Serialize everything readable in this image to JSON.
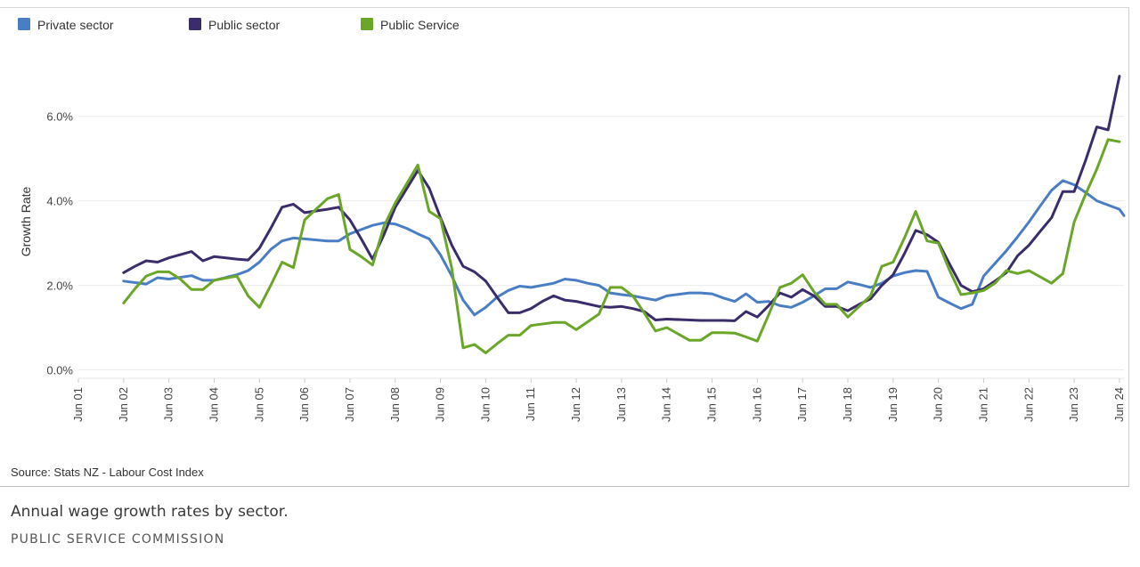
{
  "chart_data": {
    "type": "line",
    "title": "",
    "xlabel": "",
    "ylabel": "Growth Rate",
    "y_ticks": [
      "0.0%",
      "2.0%",
      "4.0%",
      "6.0%"
    ],
    "y_tick_values": [
      0,
      2,
      4,
      6
    ],
    "ylim": [
      -0.2,
      7.3
    ],
    "x_ticks": [
      "Jun 01",
      "Jun 02",
      "Jun 03",
      "Jun 04",
      "Jun 05",
      "Jun 06",
      "Jun 07",
      "Jun 08",
      "Jun 09",
      "Jun 10",
      "Jun 11",
      "Jun 12",
      "Jun 13",
      "Jun 14",
      "Jun 15",
      "Jun 16",
      "Jun 17",
      "Jun 18",
      "Jun 19",
      "Jun 20",
      "Jun 21",
      "Jun 22",
      "Jun 23",
      "Jun 24"
    ],
    "x_tick_years": [
      2001,
      2002,
      2003,
      2004,
      2005,
      2006,
      2007,
      2008,
      2009,
      2010,
      2011,
      2012,
      2013,
      2014,
      2015,
      2016,
      2017,
      2018,
      2019,
      2020,
      2021,
      2022,
      2023,
      2024
    ],
    "xlim": [
      2001,
      2024.1
    ],
    "grid": "horizontal",
    "legend_position": "top-left",
    "series": [
      {
        "name": "Private sector",
        "color": "#4a7ec4",
        "points": [
          [
            2002,
            2.1
          ],
          [
            2002.5,
            2.03
          ],
          [
            2002.75,
            2.18
          ],
          [
            2003,
            2.15
          ],
          [
            2003.5,
            2.23
          ],
          [
            2003.75,
            2.12
          ],
          [
            2004,
            2.12
          ],
          [
            2004.5,
            2.25
          ],
          [
            2004.75,
            2.35
          ],
          [
            2005,
            2.55
          ],
          [
            2005.25,
            2.85
          ],
          [
            2005.5,
            3.05
          ],
          [
            2005.75,
            3.12
          ],
          [
            2006,
            3.1
          ],
          [
            2006.5,
            3.05
          ],
          [
            2006.75,
            3.05
          ],
          [
            2007,
            3.22
          ],
          [
            2007.25,
            3.32
          ],
          [
            2007.5,
            3.42
          ],
          [
            2007.75,
            3.48
          ],
          [
            2008,
            3.45
          ],
          [
            2008.25,
            3.35
          ],
          [
            2008.5,
            3.22
          ],
          [
            2008.75,
            3.1
          ],
          [
            2009,
            2.72
          ],
          [
            2009.25,
            2.22
          ],
          [
            2009.5,
            1.65
          ],
          [
            2009.75,
            1.3
          ],
          [
            2010,
            1.48
          ],
          [
            2010.25,
            1.72
          ],
          [
            2010.5,
            1.88
          ],
          [
            2010.75,
            1.98
          ],
          [
            2011,
            1.95
          ],
          [
            2011.5,
            2.05
          ],
          [
            2011.75,
            2.15
          ],
          [
            2012,
            2.12
          ],
          [
            2012.25,
            2.05
          ],
          [
            2012.5,
            2.0
          ],
          [
            2012.75,
            1.82
          ],
          [
            2013,
            1.78
          ],
          [
            2013.25,
            1.75
          ],
          [
            2013.5,
            1.7
          ],
          [
            2013.75,
            1.65
          ],
          [
            2014,
            1.75
          ],
          [
            2014.5,
            1.82
          ],
          [
            2014.75,
            1.82
          ],
          [
            2015,
            1.8
          ],
          [
            2015.25,
            1.7
          ],
          [
            2015.5,
            1.62
          ],
          [
            2015.75,
            1.8
          ],
          [
            2016,
            1.6
          ],
          [
            2016.25,
            1.62
          ],
          [
            2016.5,
            1.52
          ],
          [
            2016.75,
            1.48
          ],
          [
            2017,
            1.6
          ],
          [
            2017.25,
            1.75
          ],
          [
            2017.5,
            1.92
          ],
          [
            2017.75,
            1.92
          ],
          [
            2018,
            2.08
          ],
          [
            2018.25,
            2.02
          ],
          [
            2018.5,
            1.95
          ],
          [
            2018.75,
            2.05
          ],
          [
            2019,
            2.22
          ],
          [
            2019.25,
            2.3
          ],
          [
            2019.5,
            2.35
          ],
          [
            2019.75,
            2.33
          ],
          [
            2020,
            1.72
          ],
          [
            2020.25,
            1.58
          ],
          [
            2020.5,
            1.45
          ],
          [
            2020.75,
            1.55
          ],
          [
            2021,
            2.22
          ],
          [
            2021.25,
            2.52
          ],
          [
            2021.5,
            2.82
          ],
          [
            2021.75,
            3.15
          ],
          [
            2022,
            3.5
          ],
          [
            2022.25,
            3.88
          ],
          [
            2022.5,
            4.25
          ],
          [
            2022.75,
            4.48
          ],
          [
            2023,
            4.38
          ],
          [
            2023.25,
            4.2
          ],
          [
            2023.5,
            4.0
          ],
          [
            2023.75,
            3.9
          ],
          [
            2024,
            3.8
          ],
          [
            2024.1,
            3.65
          ]
        ]
      },
      {
        "name": "Public sector",
        "color": "#3b2d6b",
        "points": [
          [
            2002,
            2.3
          ],
          [
            2002.25,
            2.45
          ],
          [
            2002.5,
            2.58
          ],
          [
            2002.75,
            2.55
          ],
          [
            2003,
            2.65
          ],
          [
            2003.5,
            2.8
          ],
          [
            2003.75,
            2.58
          ],
          [
            2004,
            2.68
          ],
          [
            2004.5,
            2.62
          ],
          [
            2004.75,
            2.6
          ],
          [
            2005,
            2.88
          ],
          [
            2005.25,
            3.35
          ],
          [
            2005.5,
            3.85
          ],
          [
            2005.75,
            3.92
          ],
          [
            2006,
            3.72
          ],
          [
            2006.5,
            3.8
          ],
          [
            2006.75,
            3.85
          ],
          [
            2007,
            3.55
          ],
          [
            2007.25,
            3.1
          ],
          [
            2007.5,
            2.62
          ],
          [
            2007.75,
            3.2
          ],
          [
            2008,
            3.85
          ],
          [
            2008.5,
            4.72
          ],
          [
            2008.75,
            4.3
          ],
          [
            2009,
            3.6
          ],
          [
            2009.25,
            2.95
          ],
          [
            2009.5,
            2.45
          ],
          [
            2009.75,
            2.32
          ],
          [
            2010,
            2.1
          ],
          [
            2010.25,
            1.72
          ],
          [
            2010.5,
            1.35
          ],
          [
            2010.75,
            1.35
          ],
          [
            2011,
            1.45
          ],
          [
            2011.25,
            1.62
          ],
          [
            2011.5,
            1.75
          ],
          [
            2011.75,
            1.65
          ],
          [
            2012,
            1.62
          ],
          [
            2012.5,
            1.5
          ],
          [
            2012.75,
            1.48
          ],
          [
            2013,
            1.5
          ],
          [
            2013.25,
            1.45
          ],
          [
            2013.5,
            1.38
          ],
          [
            2013.75,
            1.18
          ],
          [
            2014,
            1.2
          ],
          [
            2014.5,
            1.18
          ],
          [
            2014.75,
            1.17
          ],
          [
            2015,
            1.17
          ],
          [
            2015.25,
            1.17
          ],
          [
            2015.5,
            1.16
          ],
          [
            2015.75,
            1.38
          ],
          [
            2016,
            1.25
          ],
          [
            2016.25,
            1.52
          ],
          [
            2016.5,
            1.82
          ],
          [
            2016.75,
            1.72
          ],
          [
            2017,
            1.9
          ],
          [
            2017.25,
            1.75
          ],
          [
            2017.5,
            1.5
          ],
          [
            2017.75,
            1.5
          ],
          [
            2018,
            1.4
          ],
          [
            2018.25,
            1.55
          ],
          [
            2018.5,
            1.68
          ],
          [
            2018.75,
            2.0
          ],
          [
            2019,
            2.25
          ],
          [
            2019.25,
            2.75
          ],
          [
            2019.5,
            3.3
          ],
          [
            2019.75,
            3.2
          ],
          [
            2020,
            3.02
          ],
          [
            2020.25,
            2.5
          ],
          [
            2020.5,
            2.0
          ],
          [
            2020.75,
            1.85
          ],
          [
            2021,
            1.92
          ],
          [
            2021.25,
            2.1
          ],
          [
            2021.5,
            2.3
          ],
          [
            2021.75,
            2.7
          ],
          [
            2022,
            2.95
          ],
          [
            2022.25,
            3.28
          ],
          [
            2022.5,
            3.6
          ],
          [
            2022.75,
            4.22
          ],
          [
            2023,
            4.22
          ],
          [
            2023.25,
            4.95
          ],
          [
            2023.5,
            5.75
          ],
          [
            2023.75,
            5.68
          ],
          [
            2024,
            6.95
          ]
        ]
      },
      {
        "name": "Public Service",
        "color": "#6aa628",
        "points": [
          [
            2002,
            1.58
          ],
          [
            2002.25,
            1.92
          ],
          [
            2002.5,
            2.22
          ],
          [
            2002.75,
            2.32
          ],
          [
            2003,
            2.32
          ],
          [
            2003.25,
            2.15
          ],
          [
            2003.5,
            1.9
          ],
          [
            2003.75,
            1.9
          ],
          [
            2004,
            2.12
          ],
          [
            2004.5,
            2.22
          ],
          [
            2004.75,
            1.75
          ],
          [
            2005,
            1.48
          ],
          [
            2005.25,
            2.0
          ],
          [
            2005.5,
            2.55
          ],
          [
            2005.75,
            2.42
          ],
          [
            2006,
            3.55
          ],
          [
            2006.25,
            3.8
          ],
          [
            2006.5,
            4.05
          ],
          [
            2006.75,
            4.15
          ],
          [
            2007,
            2.85
          ],
          [
            2007.25,
            2.68
          ],
          [
            2007.5,
            2.48
          ],
          [
            2007.75,
            3.4
          ],
          [
            2008,
            3.95
          ],
          [
            2008.5,
            4.85
          ],
          [
            2008.75,
            3.75
          ],
          [
            2009,
            3.58
          ],
          [
            2009.25,
            2.4
          ],
          [
            2009.5,
            0.52
          ],
          [
            2009.75,
            0.6
          ],
          [
            2010,
            0.4
          ],
          [
            2010.25,
            0.62
          ],
          [
            2010.5,
            0.82
          ],
          [
            2010.75,
            0.82
          ],
          [
            2011,
            1.05
          ],
          [
            2011.5,
            1.12
          ],
          [
            2011.75,
            1.12
          ],
          [
            2012,
            0.95
          ],
          [
            2012.5,
            1.32
          ],
          [
            2012.75,
            1.95
          ],
          [
            2013,
            1.95
          ],
          [
            2013.25,
            1.75
          ],
          [
            2013.5,
            1.35
          ],
          [
            2013.75,
            0.92
          ],
          [
            2014,
            1.0
          ],
          [
            2014.5,
            0.7
          ],
          [
            2014.75,
            0.7
          ],
          [
            2015,
            0.88
          ],
          [
            2015.25,
            0.88
          ],
          [
            2015.5,
            0.87
          ],
          [
            2015.75,
            0.78
          ],
          [
            2016,
            0.68
          ],
          [
            2016.25,
            1.3
          ],
          [
            2016.5,
            1.95
          ],
          [
            2016.75,
            2.05
          ],
          [
            2017,
            2.25
          ],
          [
            2017.25,
            1.85
          ],
          [
            2017.5,
            1.55
          ],
          [
            2017.75,
            1.55
          ],
          [
            2018,
            1.25
          ],
          [
            2018.25,
            1.5
          ],
          [
            2018.5,
            1.75
          ],
          [
            2018.75,
            2.45
          ],
          [
            2019,
            2.55
          ],
          [
            2019.25,
            3.12
          ],
          [
            2019.5,
            3.75
          ],
          [
            2019.75,
            3.05
          ],
          [
            2020,
            3.0
          ],
          [
            2020.25,
            2.35
          ],
          [
            2020.5,
            1.78
          ],
          [
            2020.75,
            1.82
          ],
          [
            2021,
            1.88
          ],
          [
            2021.25,
            2.05
          ],
          [
            2021.5,
            2.35
          ],
          [
            2021.75,
            2.28
          ],
          [
            2022,
            2.35
          ],
          [
            2022.25,
            2.2
          ],
          [
            2022.5,
            2.05
          ],
          [
            2022.75,
            2.28
          ],
          [
            2023,
            3.5
          ],
          [
            2023.25,
            4.15
          ],
          [
            2023.5,
            4.75
          ],
          [
            2023.75,
            5.45
          ],
          [
            2024,
            5.4
          ]
        ]
      }
    ]
  },
  "source_note": "Source: Stats NZ - Labour Cost Index",
  "caption": "Annual wage growth rates by sector.",
  "credit": "PUBLIC SERVICE COMMISSION"
}
